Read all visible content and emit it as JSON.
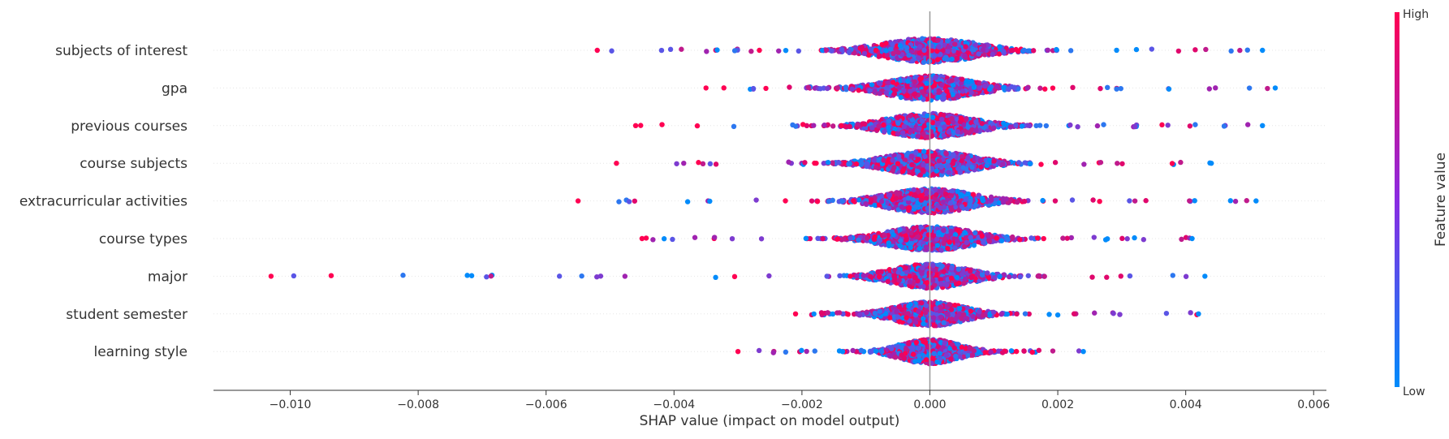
{
  "chart_data": {
    "type": "scatter",
    "subtype": "shap-beeswarm",
    "title": "",
    "xlabel": "SHAP value (impact on model output)",
    "xlim": [
      -0.0112,
      0.0062
    ],
    "xticks": [
      -0.01,
      -0.008,
      -0.006,
      -0.004,
      -0.002,
      0.0,
      0.002,
      0.004,
      0.006
    ],
    "xtick_labels": [
      "−0.010",
      "−0.008",
      "−0.006",
      "−0.004",
      "−0.002",
      "0.000",
      "0.002",
      "0.004",
      "0.006"
    ],
    "zero_line": 0.0,
    "features": [
      {
        "name": "subjects of interest",
        "min": -0.0052,
        "max": 0.0052,
        "spread": 0.0011
      },
      {
        "name": "gpa",
        "min": -0.0035,
        "max": 0.0054,
        "spread": 0.001
      },
      {
        "name": "previous courses",
        "min": -0.0046,
        "max": 0.0052,
        "spread": 0.001
      },
      {
        "name": "course subjects",
        "min": -0.0049,
        "max": 0.0044,
        "spread": 0.001
      },
      {
        "name": "extracurricular activities",
        "min": -0.0055,
        "max": 0.0051,
        "spread": 0.001
      },
      {
        "name": "course types",
        "min": -0.0045,
        "max": 0.0041,
        "spread": 0.001
      },
      {
        "name": "major",
        "min": -0.0103,
        "max": 0.0043,
        "spread": 0.0009
      },
      {
        "name": "student semester",
        "min": -0.0021,
        "max": 0.0042,
        "spread": 0.0008
      },
      {
        "name": "learning style",
        "min": -0.003,
        "max": 0.0024,
        "spread": 0.0007
      }
    ],
    "colorbar": {
      "label": "Feature value",
      "high_label": "High",
      "low_label": "Low",
      "high_color": "#ff0052",
      "mid_color": "#8a2be2",
      "low_color": "#008bfb"
    },
    "grid": false,
    "legend": "colorbar-right"
  }
}
